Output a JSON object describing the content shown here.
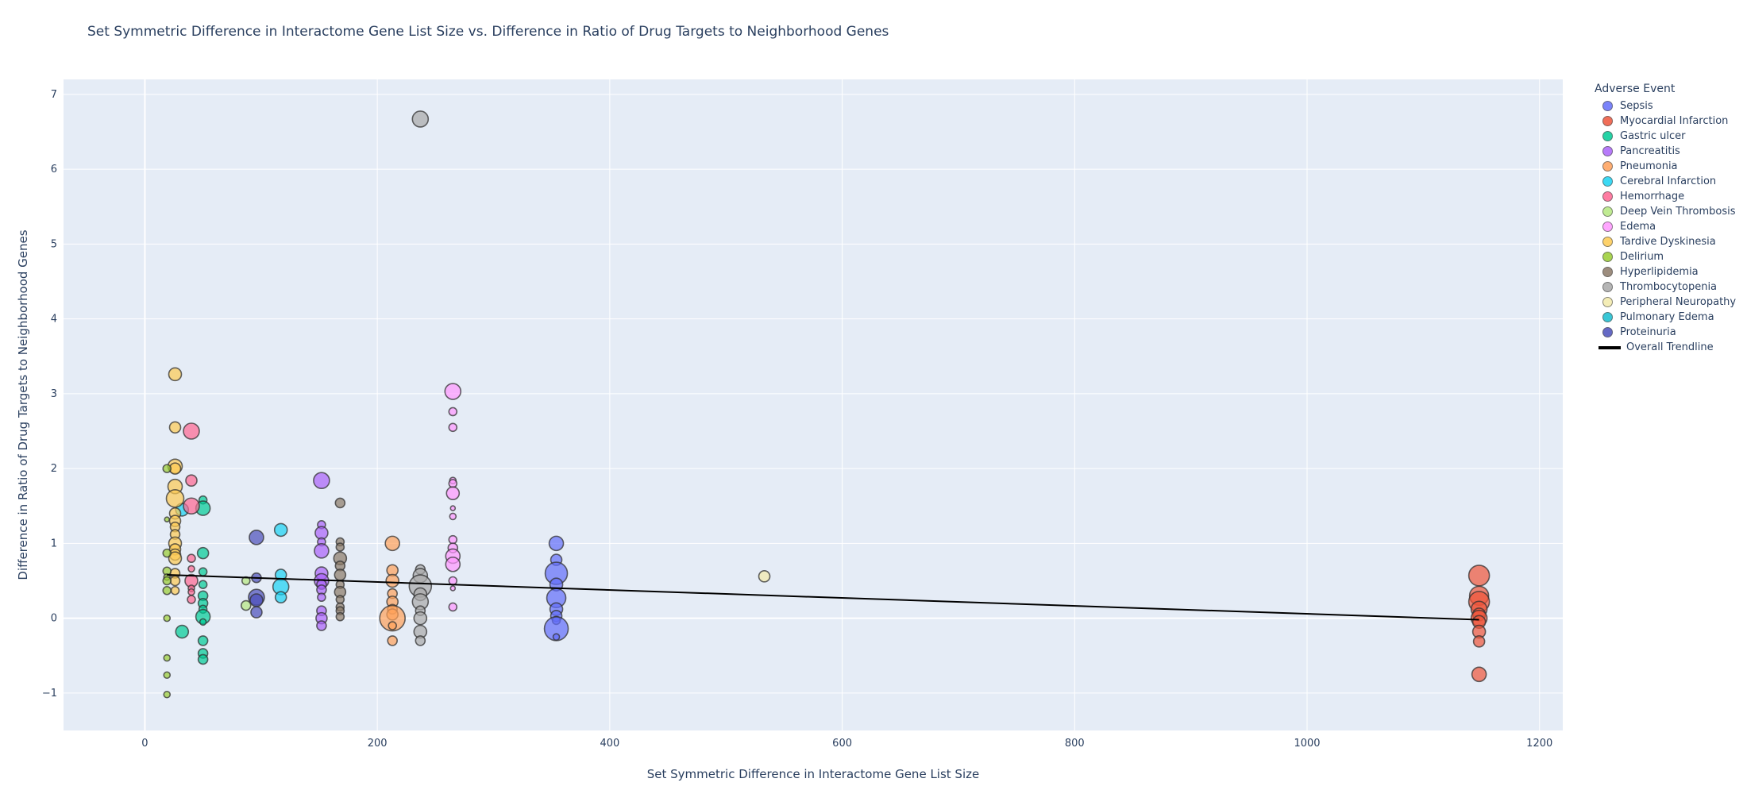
{
  "title": "Set Symmetric Difference in Interactome Gene List Size  vs. Difference in Ratio of Drug Targets to Neighborhood Genes",
  "legend_title": "Adverse Event",
  "legend_placement": "right",
  "chart_data": {
    "type": "scatter",
    "title": "Set Symmetric Difference in Interactome Gene List Size  vs. Difference in Ratio of Drug Targets to Neighborhood Genes",
    "xlabel": "Set Symmetric Difference in Interactome Gene List Size",
    "ylabel": "Difference in Ratio of Drug Targets to Neighborhood Genes",
    "xlim": [
      -70,
      1220
    ],
    "ylim": [
      -1.5,
      7.2
    ],
    "xticks": [
      0,
      200,
      400,
      600,
      800,
      1000,
      1200
    ],
    "yticks": [
      -1,
      0,
      1,
      2,
      3,
      4,
      5,
      6,
      7
    ],
    "grid": true,
    "series": [
      {
        "name": "Sepsis",
        "color": "#636efa",
        "points": [
          [
            354,
            1.0,
            16
          ],
          [
            354,
            0.78,
            12
          ],
          [
            354,
            0.6,
            26
          ],
          [
            354,
            0.45,
            14
          ],
          [
            354,
            0.27,
            22
          ],
          [
            354,
            0.12,
            14
          ],
          [
            354,
            0.03,
            12
          ],
          [
            354,
            -0.03,
            8
          ],
          [
            354,
            -0.14,
            28
          ],
          [
            354,
            -0.25,
            6
          ]
        ]
      },
      {
        "name": "Myocardial Infarction",
        "color": "#ef553b",
        "points": [
          [
            1148,
            0.57,
            24
          ],
          [
            1148,
            0.3,
            22
          ],
          [
            1148,
            0.22,
            24
          ],
          [
            1148,
            0.12,
            18
          ],
          [
            1148,
            0.05,
            14
          ],
          [
            1148,
            0.0,
            18
          ],
          [
            1148,
            -0.05,
            14
          ],
          [
            1148,
            -0.18,
            14
          ],
          [
            1148,
            -0.31,
            12
          ],
          [
            1148,
            -0.75,
            16
          ]
        ]
      },
      {
        "name": "Gastric ulcer",
        "color": "#00cc96",
        "points": [
          [
            50,
            1.58,
            8
          ],
          [
            50,
            1.47,
            16
          ],
          [
            50,
            0.87,
            12
          ],
          [
            50,
            0.62,
            8
          ],
          [
            50,
            0.45,
            8
          ],
          [
            50,
            0.3,
            10
          ],
          [
            50,
            0.2,
            10
          ],
          [
            50,
            0.12,
            8
          ],
          [
            50,
            0.02,
            16
          ],
          [
            50,
            -0.05,
            6
          ],
          [
            50,
            -0.3,
            10
          ],
          [
            50,
            -0.47,
            10
          ],
          [
            50,
            -0.55,
            10
          ],
          [
            32,
            -0.18,
            14
          ]
        ]
      },
      {
        "name": "Pancreatitis",
        "color": "#ab63fa",
        "points": [
          [
            152,
            1.84,
            18
          ],
          [
            152,
            1.25,
            8
          ],
          [
            152,
            1.14,
            14
          ],
          [
            152,
            1.02,
            8
          ],
          [
            152,
            0.9,
            16
          ],
          [
            152,
            0.6,
            14
          ],
          [
            152,
            0.5,
            16
          ],
          [
            152,
            0.45,
            10
          ],
          [
            152,
            0.38,
            10
          ],
          [
            152,
            0.28,
            8
          ],
          [
            152,
            0.1,
            10
          ],
          [
            152,
            0.0,
            12
          ],
          [
            152,
            -0.1,
            10
          ]
        ]
      },
      {
        "name": "Pneumonia",
        "color": "#ffa15a",
        "points": [
          [
            213,
            1.0,
            16
          ],
          [
            213,
            0.64,
            12
          ],
          [
            213,
            0.5,
            14
          ],
          [
            213,
            0.33,
            10
          ],
          [
            213,
            0.22,
            12
          ],
          [
            213,
            0.12,
            10
          ],
          [
            213,
            0.05,
            12
          ],
          [
            213,
            0.0,
            30
          ],
          [
            213,
            -0.1,
            8
          ],
          [
            213,
            -0.3,
            10
          ]
        ]
      },
      {
        "name": "Cerebral Infarction",
        "color": "#19d3f3",
        "points": [
          [
            117,
            1.18,
            14
          ],
          [
            117,
            0.58,
            12
          ],
          [
            117,
            0.42,
            18
          ],
          [
            117,
            0.28,
            12
          ],
          [
            32,
            1.45,
            14
          ]
        ]
      },
      {
        "name": "Hemorrhage",
        "color": "#ff6692",
        "points": [
          [
            40,
            2.5,
            18
          ],
          [
            40,
            1.84,
            12
          ],
          [
            40,
            1.5,
            18
          ],
          [
            40,
            0.8,
            8
          ],
          [
            40,
            0.66,
            6
          ],
          [
            40,
            0.5,
            14
          ],
          [
            40,
            0.4,
            6
          ],
          [
            40,
            0.35,
            6
          ],
          [
            40,
            0.25,
            8
          ]
        ]
      },
      {
        "name": "Deep Vein Thrombosis",
        "color": "#b6e880",
        "points": [
          [
            87,
            0.5,
            8
          ],
          [
            87,
            0.17,
            10
          ]
        ]
      },
      {
        "name": "Edema",
        "color": "#ff97ff",
        "points": [
          [
            265,
            3.03,
            18
          ],
          [
            265,
            2.76,
            8
          ],
          [
            265,
            2.55,
            8
          ],
          [
            265,
            1.84,
            6
          ],
          [
            265,
            1.8,
            8
          ],
          [
            265,
            1.67,
            14
          ],
          [
            265,
            1.47,
            4
          ],
          [
            265,
            1.36,
            6
          ],
          [
            265,
            1.05,
            8
          ],
          [
            265,
            0.94,
            10
          ],
          [
            265,
            0.83,
            16
          ],
          [
            265,
            0.72,
            16
          ],
          [
            265,
            0.5,
            8
          ],
          [
            265,
            0.4,
            4
          ],
          [
            265,
            0.15,
            8
          ]
        ]
      },
      {
        "name": "Tardive Dyskinesia",
        "color": "#fecb52",
        "points": [
          [
            26,
            3.26,
            14
          ],
          [
            26,
            2.55,
            12
          ],
          [
            26,
            2.03,
            16
          ],
          [
            26,
            2.0,
            12
          ],
          [
            26,
            1.76,
            16
          ],
          [
            26,
            1.6,
            20
          ],
          [
            26,
            1.4,
            12
          ],
          [
            26,
            1.3,
            12
          ],
          [
            26,
            1.22,
            10
          ],
          [
            26,
            1.12,
            10
          ],
          [
            26,
            1.0,
            14
          ],
          [
            26,
            0.92,
            12
          ],
          [
            26,
            0.85,
            12
          ],
          [
            26,
            0.8,
            14
          ],
          [
            26,
            0.6,
            10
          ],
          [
            26,
            0.5,
            10
          ],
          [
            26,
            0.37,
            8
          ]
        ]
      },
      {
        "name": "Delirium",
        "color": "#9acd32",
        "points": [
          [
            19,
            2.0,
            8
          ],
          [
            19,
            1.32,
            4
          ],
          [
            19,
            0.87,
            8
          ],
          [
            19,
            0.63,
            8
          ],
          [
            19,
            0.55,
            6
          ],
          [
            19,
            0.5,
            8
          ],
          [
            19,
            0.37,
            8
          ],
          [
            19,
            0.0,
            6
          ],
          [
            19,
            -0.53,
            6
          ],
          [
            19,
            -0.76,
            6
          ],
          [
            19,
            -1.02,
            6
          ]
        ]
      },
      {
        "name": "Hyperlipidemia",
        "color": "#8c7a68",
        "points": [
          [
            168,
            1.54,
            10
          ],
          [
            168,
            1.02,
            8
          ],
          [
            168,
            0.95,
            8
          ],
          [
            168,
            0.8,
            14
          ],
          [
            168,
            0.7,
            10
          ],
          [
            168,
            0.58,
            12
          ],
          [
            168,
            0.45,
            8
          ],
          [
            168,
            0.35,
            12
          ],
          [
            168,
            0.25,
            8
          ],
          [
            168,
            0.15,
            8
          ],
          [
            168,
            0.1,
            8
          ],
          [
            168,
            0.02,
            8
          ]
        ]
      },
      {
        "name": "Thrombocytopenia",
        "color": "#a9a9a9",
        "points": [
          [
            237,
            6.67,
            18
          ],
          [
            237,
            0.65,
            10
          ],
          [
            237,
            0.57,
            16
          ],
          [
            237,
            0.43,
            26
          ],
          [
            237,
            0.32,
            14
          ],
          [
            237,
            0.22,
            18
          ],
          [
            237,
            0.1,
            10
          ],
          [
            237,
            0.0,
            14
          ],
          [
            237,
            -0.18,
            14
          ],
          [
            237,
            -0.3,
            10
          ]
        ]
      },
      {
        "name": "Peripheral Neuropathy",
        "color": "#f3eaaa",
        "points": [
          [
            533,
            0.56,
            12
          ]
        ]
      },
      {
        "name": "Pulmonary Edema",
        "color": "#17becf",
        "points": []
      },
      {
        "name": "Proteinuria",
        "color": "#4b4fbb",
        "points": [
          [
            96,
            1.08,
            16
          ],
          [
            96,
            0.54,
            10
          ],
          [
            96,
            0.28,
            18
          ],
          [
            96,
            0.24,
            14
          ],
          [
            96,
            0.08,
            12
          ]
        ]
      },
      {
        "name": "Overall Trendline",
        "color": "#000000",
        "line": [
          [
            19,
            0.58
          ],
          [
            1148,
            -0.02
          ]
        ]
      }
    ]
  }
}
